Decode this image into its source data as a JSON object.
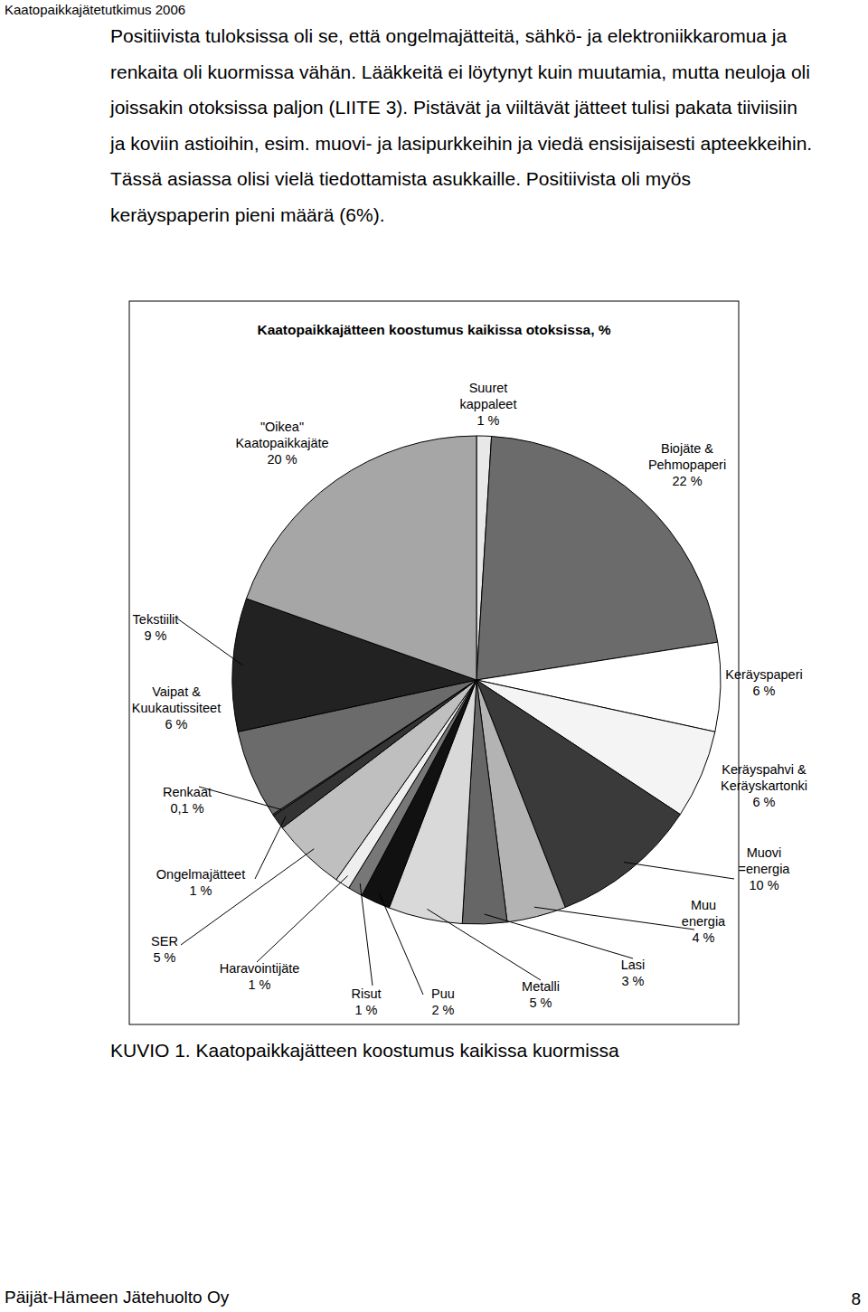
{
  "header": {
    "title": "Kaatopaikkajätetutkimus 2006"
  },
  "paragraph": {
    "lines": [
      "Positiivista tuloksissa oli se, että ongelmajätteitä, sähkö- ja elektroniikkaromua ja",
      "renkaita oli kuormissa vähän. Lääkkeitä ei löytynyt kuin muutamia, mutta neuloja oli",
      "joissakin otoksissa paljon (LIITE 3). Pistävät ja viiltävät jätteet tulisi pakata tiiviisiin",
      "ja koviin astioihin, esim. muovi- ja lasipurkkeihin ja viedä ensisijaisesti apteekkeihin.",
      "Tässä asiassa olisi vielä tiedottamista asukkaille. Positiivista oli myös",
      "keräyspaperin pieni määrä (6%)."
    ]
  },
  "chart_data": {
    "type": "pie",
    "title": "Kaatopaikkajätteen koostumus kaikissa otoksissa, %",
    "categories": [
      "Suuret kappaleet",
      "Biojäte & Pehmopaperi",
      "Keräyspaperi",
      "Keräyspahvi & Keräyskartonki",
      "Muovi =energia",
      "Muu energia",
      "Lasi",
      "Metalli",
      "Puu",
      "Risut",
      "Haravointijäte",
      "SER",
      "Ongelmajätteet",
      "Renkaat",
      "Vaipat & Kuukautissiteet",
      "Tekstiilit",
      "\"Oikea\" Kaatopaikkajäte"
    ],
    "values": [
      1,
      22,
      6,
      6,
      10,
      4,
      3,
      5,
      2,
      1,
      1,
      5,
      1,
      0.1,
      6,
      9,
      20
    ],
    "value_labels": [
      "1 %",
      "22 %",
      "6 %",
      "6 %",
      "10 %",
      "4 %",
      "3 %",
      "5 %",
      "2 %",
      "1 %",
      "1 %",
      "5 %",
      "1 %",
      "0,1 %",
      "6 %",
      "9 %",
      "20 %"
    ],
    "colors": [
      "#e8e8e8",
      "#6b6b6b",
      "#ffffff",
      "#f4f4f4",
      "#3a3a3a",
      "#b3b3b3",
      "#666666",
      "#d9d9d9",
      "#111111",
      "#777777",
      "#eeeeee",
      "#bfbfbf",
      "#333333",
      "#555555",
      "#6b6b6b",
      "#222222",
      "#a6a6a6"
    ],
    "data_labels": true
  },
  "caption": {
    "text": "KUVIO 1. Kaatopaikkajätteen koostumus kaikissa kuormissa"
  },
  "footer": {
    "left": "Päijät-Hämeen Jätehuolto Oy",
    "page": "8"
  }
}
